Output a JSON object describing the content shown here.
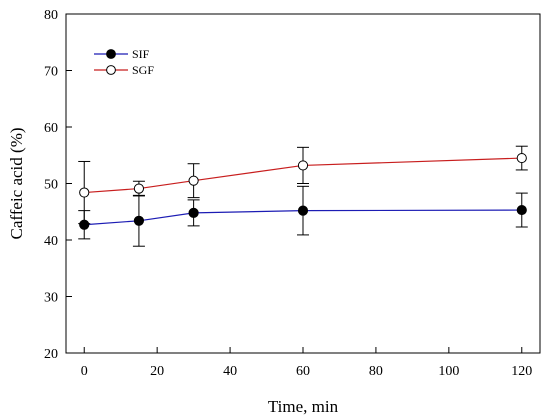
{
  "chart_data": {
    "type": "line",
    "title": "",
    "xlabel": "Time, min",
    "ylabel": "Caffeic acid (%)",
    "xlim": [
      -5,
      125
    ],
    "ylim": [
      20,
      80
    ],
    "xticks": [
      0,
      20,
      40,
      60,
      80,
      100,
      120
    ],
    "yticks": [
      20,
      30,
      40,
      50,
      60,
      70,
      80
    ],
    "grid": false,
    "legend_position": "top-left",
    "x": [
      0,
      15,
      30,
      60,
      120
    ],
    "series": [
      {
        "name": "SIF",
        "color": "#1c1cb4",
        "marker": "filled-circle",
        "values": [
          42.7,
          43.4,
          44.8,
          45.2,
          45.3
        ],
        "error": [
          2.5,
          4.5,
          2.3,
          4.3,
          3.0
        ]
      },
      {
        "name": "SGF",
        "color": "#c81e1e",
        "marker": "open-circle",
        "values": [
          48.4,
          49.1,
          50.5,
          53.2,
          54.5
        ],
        "error": [
          5.5,
          1.3,
          3.0,
          3.2,
          2.1
        ]
      }
    ]
  }
}
